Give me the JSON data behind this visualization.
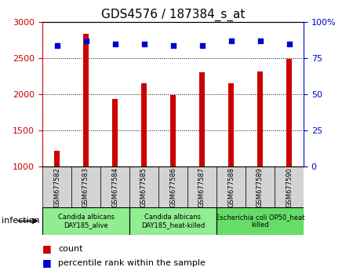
{
  "title": "GDS4576 / 187384_s_at",
  "samples": [
    "GSM677582",
    "GSM677583",
    "GSM677584",
    "GSM677585",
    "GSM677586",
    "GSM677587",
    "GSM677588",
    "GSM677589",
    "GSM677590"
  ],
  "counts": [
    1220,
    2840,
    1940,
    2160,
    1990,
    2310,
    2160,
    2320,
    2490
  ],
  "percentile_ranks": [
    84,
    87,
    85,
    85,
    84,
    84,
    87,
    87,
    85
  ],
  "bar_color": "#cc0000",
  "dot_color": "#0000cc",
  "ylim_left": [
    1000,
    3000
  ],
  "ylim_right": [
    0,
    100
  ],
  "yticks_left": [
    1000,
    1500,
    2000,
    2500,
    3000
  ],
  "yticks_right": [
    0,
    25,
    50,
    75,
    100
  ],
  "bar_width": 0.18,
  "groups": [
    {
      "label": "Candida albicans\nDAY185_alive",
      "start": 0,
      "end": 3,
      "color": "#90ee90"
    },
    {
      "label": "Candida albicans\nDAY185_heat-killed",
      "start": 3,
      "end": 6,
      "color": "#90ee90"
    },
    {
      "label": "Escherichia coli OP50_heat\nkilled",
      "start": 6,
      "end": 9,
      "color": "#66dd66"
    }
  ],
  "infection_label": "infection",
  "legend_count": "count",
  "legend_percentile": "percentile rank within the sample",
  "sample_box_color": "#d3d3d3",
  "ylabel_left_color": "#cc0000",
  "ylabel_right_color": "#0000cc",
  "title_fontsize": 11,
  "tick_fontsize": 8,
  "sample_fontsize": 6,
  "group_fontsize": 6,
  "legend_fontsize": 8
}
